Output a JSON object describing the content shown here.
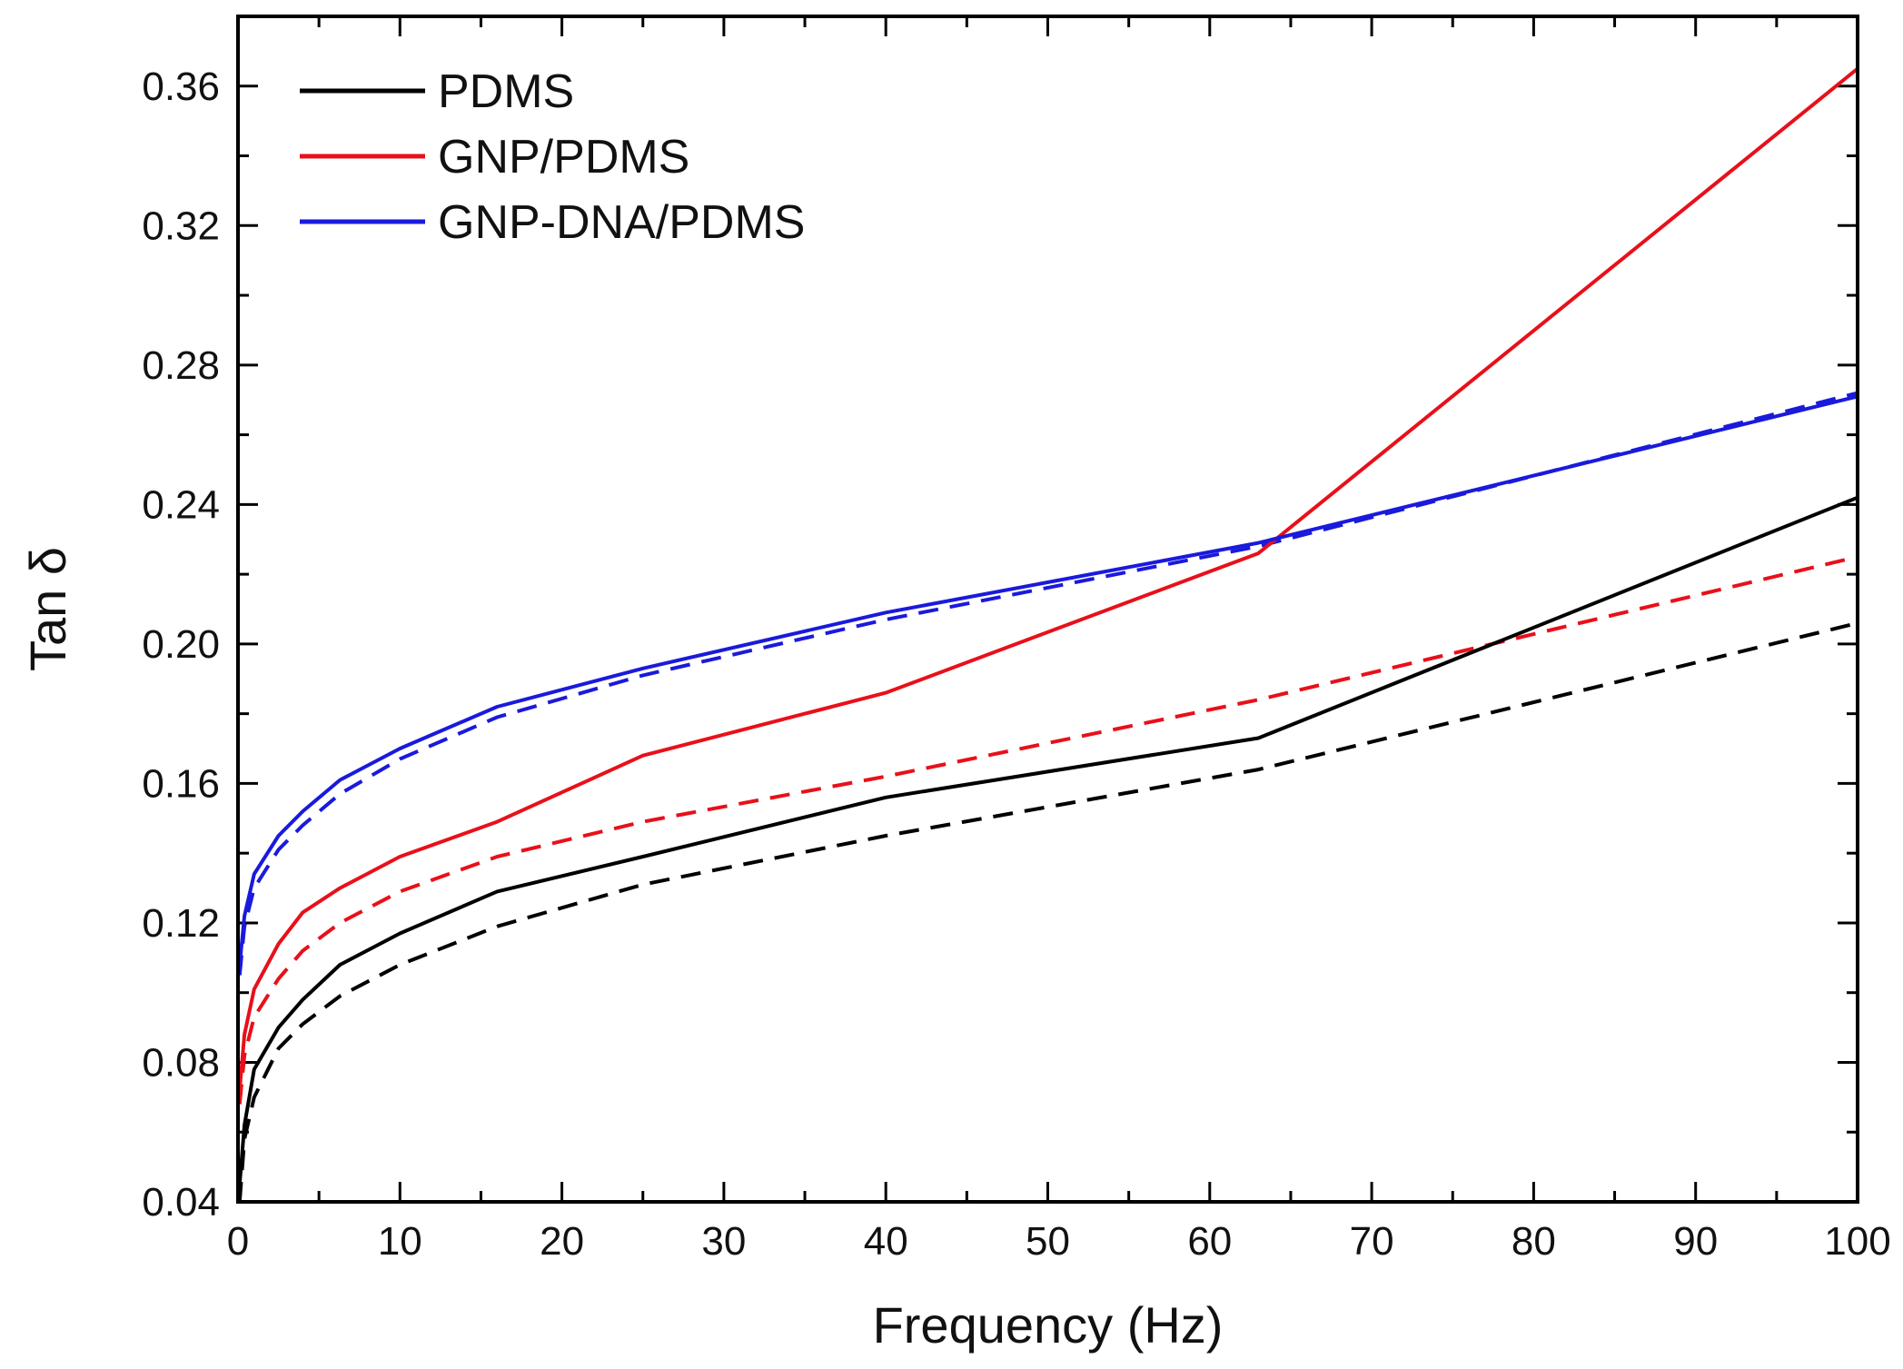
{
  "chart_data": {
    "type": "line",
    "xlabel": "Frequency (Hz)",
    "ylabel": "Tan δ",
    "xlim": [
      0,
      100
    ],
    "ylim": [
      0.04,
      0.38
    ],
    "xticks": [
      0,
      10,
      20,
      30,
      40,
      50,
      60,
      70,
      80,
      90,
      100
    ],
    "yticks": [
      0.04,
      0.08,
      0.12,
      0.16,
      0.2,
      0.24,
      0.28,
      0.32,
      0.36
    ],
    "ytick_labels": [
      "0.04",
      "0.08",
      "0.12",
      "0.16",
      "0.20",
      "0.24",
      "0.28",
      "0.32",
      "0.36"
    ],
    "xtick_labels": [
      "0",
      "10",
      "20",
      "30",
      "40",
      "50",
      "60",
      "70",
      "80",
      "90",
      "100"
    ],
    "grid": false,
    "legend_position": "top-left",
    "series": [
      {
        "name": "PDMS",
        "color": "#000000",
        "style": "solid",
        "in_legend": true,
        "x": [
          0.1,
          0.4,
          1.0,
          2.5,
          4.0,
          6.3,
          10,
          16,
          25,
          40,
          63,
          100
        ],
        "y": [
          0.045,
          0.062,
          0.078,
          0.09,
          0.098,
          0.108,
          0.117,
          0.129,
          0.139,
          0.156,
          0.173,
          0.242
        ]
      },
      {
        "name": "GNP/PDMS",
        "color": "#e8101a",
        "style": "solid",
        "in_legend": true,
        "x": [
          0.1,
          0.4,
          1.0,
          2.5,
          4.0,
          6.3,
          10,
          16,
          25,
          40,
          63,
          100
        ],
        "y": [
          0.072,
          0.088,
          0.101,
          0.114,
          0.123,
          0.13,
          0.139,
          0.149,
          0.168,
          0.186,
          0.226,
          0.365
        ]
      },
      {
        "name": "GNP-DNA/PDMS",
        "color": "#1a1adc",
        "style": "solid",
        "in_legend": true,
        "x": [
          0.1,
          0.4,
          1.0,
          2.5,
          4.0,
          6.3,
          10,
          16,
          25,
          40,
          63,
          100
        ],
        "y": [
          0.108,
          0.122,
          0.134,
          0.145,
          0.152,
          0.161,
          0.17,
          0.182,
          0.193,
          0.209,
          0.229,
          0.271
        ]
      },
      {
        "name": "PDMS (dashed)",
        "color": "#000000",
        "style": "dashed",
        "in_legend": false,
        "x": [
          0.1,
          0.4,
          1.0,
          2.5,
          4.0,
          6.3,
          10,
          16,
          25,
          40,
          63,
          100
        ],
        "y": [
          0.04,
          0.058,
          0.07,
          0.084,
          0.091,
          0.099,
          0.108,
          0.119,
          0.131,
          0.145,
          0.164,
          0.206
        ]
      },
      {
        "name": "GNP/PDMS (dashed)",
        "color": "#e8101a",
        "style": "dashed",
        "in_legend": false,
        "x": [
          0.1,
          0.4,
          1.0,
          2.5,
          4.0,
          6.3,
          10,
          16,
          25,
          40,
          63,
          100
        ],
        "y": [
          0.068,
          0.082,
          0.093,
          0.104,
          0.112,
          0.12,
          0.129,
          0.139,
          0.149,
          0.162,
          0.184,
          0.225
        ]
      },
      {
        "name": "GNP-DNA/PDMS (dashed)",
        "color": "#1a1adc",
        "style": "dashed",
        "in_legend": false,
        "x": [
          0.1,
          0.4,
          1.0,
          2.5,
          4.0,
          6.3,
          10,
          16,
          25,
          40,
          63,
          100
        ],
        "y": [
          0.105,
          0.119,
          0.13,
          0.141,
          0.148,
          0.157,
          0.167,
          0.179,
          0.191,
          0.207,
          0.228,
          0.272
        ]
      }
    ]
  }
}
